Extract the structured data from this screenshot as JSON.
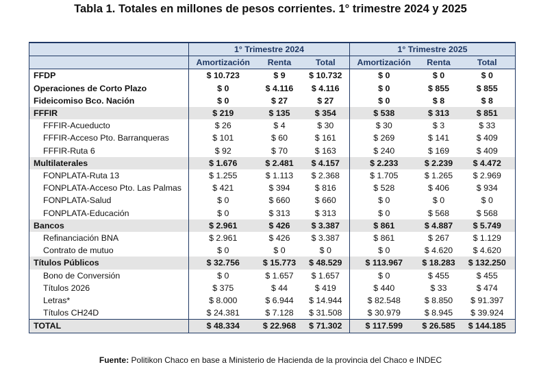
{
  "title": "Tabla 1. Totales en millones de pesos corrientes. 1° trimestre 2024 y 2025",
  "table": {
    "groups": [
      "1° Trimestre 2024",
      "1° Trimestre 2025"
    ],
    "columns": [
      "Amortización",
      "Renta",
      "Total",
      "Amortización",
      "Renta",
      "Total"
    ],
    "rows": [
      {
        "kind": "top",
        "label": "FFDP",
        "values": [
          "$ 10.723",
          "$ 9",
          "$ 10.732",
          "$ 0",
          "$ 0",
          "$ 0"
        ]
      },
      {
        "kind": "top",
        "label": "Operaciones de Corto Plazo",
        "values": [
          "$ 0",
          "$ 4.116",
          "$ 4.116",
          "$ 0",
          "$ 855",
          "$ 855"
        ]
      },
      {
        "kind": "top",
        "label": "Fideicomiso Bco. Nación",
        "values": [
          "$ 0",
          "$ 27",
          "$ 27",
          "$ 0",
          "$ 8",
          "$ 8"
        ]
      },
      {
        "kind": "group",
        "label": "FFFIR",
        "values": [
          "$ 219",
          "$ 135",
          "$ 354",
          "$ 538",
          "$ 313",
          "$ 851"
        ]
      },
      {
        "kind": "item",
        "label": "FFFIR-Acueducto",
        "values": [
          "$ 26",
          "$ 4",
          "$ 30",
          "$ 30",
          "$ 3",
          "$ 33"
        ]
      },
      {
        "kind": "item",
        "label": "FFFIR-Acceso Pto. Barranqueras",
        "values": [
          "$ 101",
          "$ 60",
          "$ 161",
          "$ 269",
          "$ 141",
          "$ 409"
        ]
      },
      {
        "kind": "item",
        "label": "FFFIR-Ruta 6",
        "values": [
          "$ 92",
          "$ 70",
          "$ 163",
          "$ 240",
          "$ 169",
          "$ 409"
        ]
      },
      {
        "kind": "group",
        "label": "Multilaterales",
        "values": [
          "$ 1.676",
          "$ 2.481",
          "$ 4.157",
          "$ 2.233",
          "$ 2.239",
          "$ 4.472"
        ]
      },
      {
        "kind": "item",
        "label": "FONPLATA-Ruta 13",
        "values": [
          "$ 1.255",
          "$ 1.113",
          "$ 2.368",
          "$ 1.705",
          "$ 1.265",
          "$ 2.969"
        ]
      },
      {
        "kind": "item",
        "label": "FONPLATA-Acceso Pto. Las Palmas",
        "values": [
          "$ 421",
          "$ 394",
          "$ 816",
          "$ 528",
          "$ 406",
          "$ 934"
        ]
      },
      {
        "kind": "item",
        "label": "FONPLATA-Salud",
        "values": [
          "$ 0",
          "$ 660",
          "$ 660",
          "$ 0",
          "$ 0",
          "$ 0"
        ]
      },
      {
        "kind": "item",
        "label": "FONPLATA-Educación",
        "values": [
          "$ 0",
          "$ 313",
          "$ 313",
          "$ 0",
          "$ 568",
          "$ 568"
        ]
      },
      {
        "kind": "group",
        "label": "Bancos",
        "values": [
          "$ 2.961",
          "$ 426",
          "$ 3.387",
          "$ 861",
          "$ 4.887",
          "$ 5.749"
        ]
      },
      {
        "kind": "item",
        "label": "Refinanciación BNA",
        "values": [
          "$ 2.961",
          "$ 426",
          "$ 3.387",
          "$ 861",
          "$ 267",
          "$ 1.129"
        ]
      },
      {
        "kind": "item",
        "label": "Contrato de mutuo",
        "values": [
          "$ 0",
          "$ 0",
          "$ 0",
          "$ 0",
          "$ 4.620",
          "$ 4.620"
        ]
      },
      {
        "kind": "group",
        "label": "Títulos Públicos",
        "values": [
          "$ 32.756",
          "$ 15.773",
          "$ 48.529",
          "$ 113.967",
          "$ 18.283",
          "$ 132.250"
        ]
      },
      {
        "kind": "item",
        "label": "Bono de Conversión",
        "values": [
          "$ 0",
          "$ 1.657",
          "$ 1.657",
          "$ 0",
          "$ 455",
          "$ 455"
        ]
      },
      {
        "kind": "item",
        "label": "Títulos 2026",
        "values": [
          "$ 375",
          "$ 44",
          "$ 419",
          "$ 440",
          "$ 33",
          "$ 474"
        ]
      },
      {
        "kind": "item",
        "label": "Letras*",
        "values": [
          "$ 8.000",
          "$ 6.944",
          "$ 14.944",
          "$ 82.548",
          "$ 8.850",
          "$ 91.397"
        ]
      },
      {
        "kind": "item",
        "label": "Títulos CH24D",
        "values": [
          "$ 24.381",
          "$ 7.128",
          "$ 31.508",
          "$ 30.979",
          "$ 8.945",
          "$ 39.924"
        ]
      },
      {
        "kind": "total",
        "label": "TOTAL",
        "values": [
          "$ 48.334",
          "$ 22.968",
          "$ 71.302",
          "$ 117.599",
          "$ 26.585",
          "$ 144.185"
        ]
      }
    ]
  },
  "footer": {
    "label": "Fuente:",
    "text": "Politikon Chaco en base a Ministerio de Hacienda de la provincia del Chaco e INDEC"
  }
}
